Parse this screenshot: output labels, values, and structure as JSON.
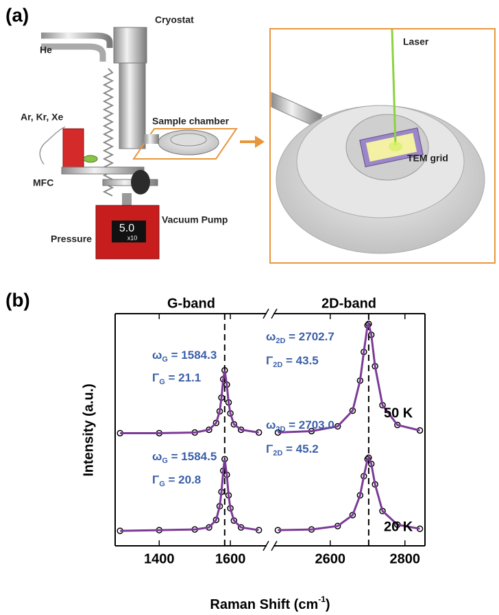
{
  "panel_a": {
    "label": "(a)",
    "cryostat": "Cryostat",
    "he": "He",
    "gases": "Ar, Kr, Xe",
    "sample_chamber": "Sample chamber",
    "mfc": "MFC",
    "vacuum_pump": "Vacuum Pump",
    "pressure": "Pressure",
    "display": "5.0",
    "display_unit": "x10",
    "laser": "Laser",
    "tem_grid": "TEM grid"
  },
  "chart_data": {
    "type": "line",
    "panel_label": "(b)",
    "band_labels": [
      "G-band",
      "2D-band"
    ],
    "y_label": "Intensity (a.u.)",
    "x_label": {
      "text": "Raman Shift (cm",
      "superscript": "-1",
      "suffix": ")"
    },
    "x_segments": [
      [
        1280,
        1700
      ],
      [
        2450,
        2850
      ]
    ],
    "xticks": [
      1400,
      1600,
      2600,
      2800
    ],
    "ylim": [
      0,
      3.4
    ],
    "reference_lines": [
      1584,
      2703
    ],
    "x": [
      1290,
      1400,
      1500,
      1540,
      1560,
      1570,
      1575,
      1580,
      1584,
      1590,
      1595,
      1600,
      1610,
      1630,
      1680,
      2460,
      2550,
      2620,
      2660,
      2680,
      2690,
      2700,
      2703,
      2710,
      2720,
      2740,
      2780,
      2840
    ],
    "series": [
      {
        "name": "50 K",
        "color": "#7b3a96",
        "marker_color": "#000000",
        "values": [
          1.65,
          1.65,
          1.66,
          1.7,
          1.8,
          1.97,
          2.17,
          2.44,
          2.57,
          2.36,
          2.1,
          1.94,
          1.78,
          1.7,
          1.66,
          1.66,
          1.68,
          1.75,
          1.98,
          2.42,
          2.84,
          3.23,
          3.25,
          3.09,
          2.63,
          2.06,
          1.77,
          1.69
        ]
      },
      {
        "name": "20 K",
        "color": "#7b3a96",
        "marker_color": "#000000",
        "values": [
          0.22,
          0.23,
          0.24,
          0.27,
          0.38,
          0.58,
          0.79,
          1.1,
          1.27,
          1.04,
          0.74,
          0.55,
          0.37,
          0.27,
          0.23,
          0.23,
          0.24,
          0.29,
          0.45,
          0.74,
          1.02,
          1.27,
          1.29,
          1.2,
          0.9,
          0.51,
          0.31,
          0.25
        ]
      }
    ],
    "annotations": [
      {
        "symbol": "ω",
        "subscript": "G",
        "text": " = 1584.3"
      },
      {
        "symbol": "Γ",
        "subscript": "G",
        "text": " = 21.1"
      },
      {
        "symbol": "ω",
        "subscript": "2D",
        "text": " = 2702.7"
      },
      {
        "symbol": "Γ",
        "subscript": "2D",
        "text": " = 43.5"
      },
      {
        "symbol": "ω",
        "subscript": "G",
        "text": " = 1584.5"
      },
      {
        "symbol": "Γ",
        "subscript": "G",
        "text": " = 20.8"
      },
      {
        "symbol": "ω",
        "subscript": "2D",
        "text": " = 2703.0"
      },
      {
        "symbol": "Γ",
        "subscript": "2D",
        "text": " = 45.2"
      }
    ]
  }
}
